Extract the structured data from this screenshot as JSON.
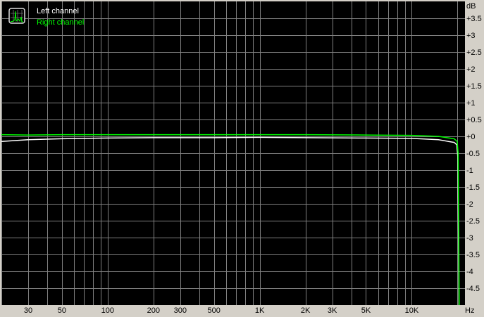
{
  "chart_data": {
    "type": "line",
    "xlabel": "Hz",
    "ylabel": "dB",
    "xscale": "log",
    "xlim": [
      20,
      22400
    ],
    "ylim": [
      -5,
      4
    ],
    "grid": true,
    "legend_placement": "top-left",
    "x_ticks": [
      {
        "value": 30,
        "label": "30"
      },
      {
        "value": 50,
        "label": "50"
      },
      {
        "value": 100,
        "label": "100"
      },
      {
        "value": 200,
        "label": "200"
      },
      {
        "value": 300,
        "label": "300"
      },
      {
        "value": 500,
        "label": "500"
      },
      {
        "value": 1000,
        "label": "1K"
      },
      {
        "value": 2000,
        "label": "2K"
      },
      {
        "value": 3000,
        "label": "3K"
      },
      {
        "value": 5000,
        "label": "5K"
      },
      {
        "value": 10000,
        "label": "10K"
      }
    ],
    "x_gridlines": [
      20,
      30,
      40,
      50,
      60,
      70,
      80,
      90,
      100,
      200,
      300,
      400,
      500,
      600,
      700,
      800,
      900,
      1000,
      2000,
      3000,
      4000,
      5000,
      6000,
      7000,
      8000,
      9000,
      10000,
      20000
    ],
    "y_ticks": [
      {
        "value": 3.5,
        "label": "+3.5"
      },
      {
        "value": 3,
        "label": "+3"
      },
      {
        "value": 2.5,
        "label": "+2.5"
      },
      {
        "value": 2,
        "label": "+2"
      },
      {
        "value": 1.5,
        "label": "+1.5"
      },
      {
        "value": 1,
        "label": "+1"
      },
      {
        "value": 0.5,
        "label": "+0.5"
      },
      {
        "value": 0,
        "label": "+0"
      },
      {
        "value": -0.5,
        "label": "-0.5"
      },
      {
        "value": -1,
        "label": "-1"
      },
      {
        "value": -1.5,
        "label": "-1.5"
      },
      {
        "value": -2,
        "label": "-2"
      },
      {
        "value": -2.5,
        "label": "-2.5"
      },
      {
        "value": -3,
        "label": "-3"
      },
      {
        "value": -3.5,
        "label": "-3.5"
      },
      {
        "value": -4,
        "label": "-4"
      },
      {
        "value": -4.5,
        "label": "-4.5"
      }
    ],
    "series": [
      {
        "name": "Left channel",
        "color": "#ffffff",
        "x": [
          20,
          30,
          50,
          100,
          200,
          500,
          1000,
          2000,
          5000,
          10000,
          15000,
          19000,
          19800,
          20100,
          20300,
          20500
        ],
        "y": [
          -0.15,
          -0.1,
          -0.07,
          -0.05,
          -0.04,
          -0.04,
          -0.03,
          -0.04,
          -0.05,
          -0.06,
          -0.1,
          -0.18,
          -0.25,
          -0.6,
          -3,
          -6
        ]
      },
      {
        "name": "Right channel",
        "color": "#00ff00",
        "x": [
          20,
          30,
          50,
          100,
          200,
          500,
          1000,
          2000,
          5000,
          10000,
          15000,
          19000,
          19900,
          20200,
          20400,
          20600
        ],
        "y": [
          0.05,
          0.04,
          0.05,
          0.05,
          0.05,
          0.05,
          0.05,
          0.05,
          0.04,
          0.03,
          0.0,
          -0.07,
          -0.15,
          -0.5,
          -3,
          -6
        ]
      }
    ]
  },
  "colors": {
    "background": "#000000",
    "grid": "#808080",
    "panel": "#d4d0c8"
  },
  "legend_icon": "spectrum-analyzer-icon"
}
